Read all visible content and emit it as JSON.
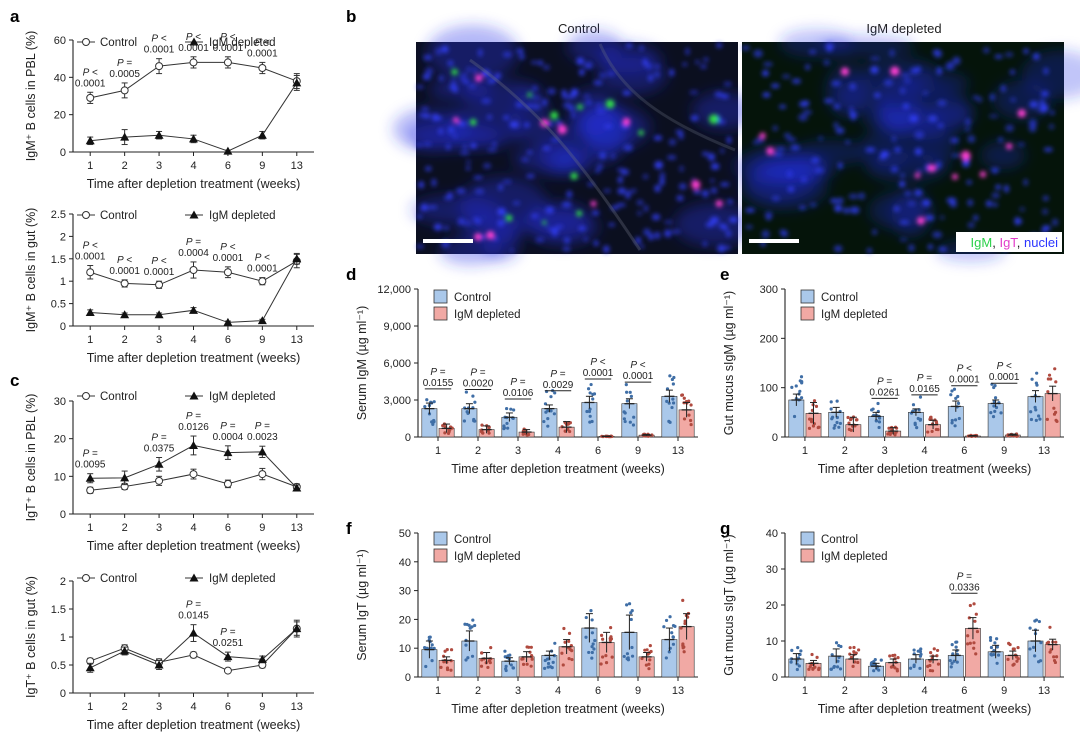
{
  "figure": {
    "panel_labels": [
      "a",
      "b",
      "c",
      "d",
      "e",
      "f",
      "g"
    ],
    "micrograph": {
      "columns": [
        "Control",
        "IgM depleted"
      ],
      "stain_legend": [
        {
          "text": "IgM",
          "color": "#2bd14a"
        },
        {
          "text": ", ",
          "color": "#222222"
        },
        {
          "text": "IgT",
          "color": "#e23cc9"
        },
        {
          "text": ", ",
          "color": "#222222"
        },
        {
          "text": "nuclei",
          "color": "#2b34ff"
        }
      ]
    }
  },
  "chart_data": [
    {
      "id": "a1",
      "type": "line",
      "ylabel": "IgM⁺ B cells in PBL (%)",
      "xlabel": "Time after depletion treatment (weeks)",
      "categories": [
        "1",
        "2",
        "3",
        "4",
        "6",
        "9",
        "13"
      ],
      "ylim": [
        0,
        60
      ],
      "yticks": [
        0,
        20,
        40,
        60
      ],
      "legend": [
        "Control",
        "IgM depleted"
      ],
      "series": [
        {
          "name": "Control",
          "marker": "open-circle",
          "values": [
            29,
            33,
            46,
            48,
            48,
            45,
            38
          ],
          "err": [
            3,
            4,
            4,
            3,
            3,
            3,
            4
          ]
        },
        {
          "name": "IgM depleted",
          "marker": "filled-triangle",
          "values": [
            6,
            8,
            9,
            7,
            0.5,
            9,
            37
          ],
          "err": [
            2,
            4,
            2,
            2,
            0.5,
            2,
            4
          ]
        }
      ],
      "pvalues": [
        {
          "cat": 0,
          "lines": [
            "P <",
            "0.0001"
          ]
        },
        {
          "cat": 1,
          "lines": [
            "P =",
            "0.0005"
          ]
        },
        {
          "cat": 2,
          "lines": [
            "P <",
            "0.0001"
          ]
        },
        {
          "cat": 3,
          "lines": [
            "P <",
            "0.0001"
          ]
        },
        {
          "cat": 4,
          "lines": [
            "P <",
            "0.0001"
          ]
        },
        {
          "cat": 5,
          "lines": [
            "P <",
            "0.0001"
          ]
        }
      ]
    },
    {
      "id": "a2",
      "type": "line",
      "ylabel": "IgM⁺ B cells in gut (%)",
      "xlabel": "Time after depletion treatment (weeks)",
      "categories": [
        "1",
        "2",
        "3",
        "4",
        "6",
        "9",
        "13"
      ],
      "ylim": [
        0,
        2.5
      ],
      "yticks": [
        0,
        0.5,
        1.0,
        1.5,
        2.0,
        2.5
      ],
      "legend": [
        "Control",
        "IgM depleted"
      ],
      "series": [
        {
          "name": "Control",
          "marker": "open-circle",
          "values": [
            1.2,
            0.95,
            0.92,
            1.25,
            1.2,
            1.0,
            1.45
          ],
          "err": [
            0.15,
            0.08,
            0.08,
            0.18,
            0.12,
            0.08,
            0.15
          ]
        },
        {
          "name": "IgM depleted",
          "marker": "filled-triangle",
          "values": [
            0.3,
            0.25,
            0.25,
            0.35,
            0.08,
            0.12,
            1.5
          ],
          "err": [
            0.06,
            0.04,
            0.04,
            0.06,
            0.03,
            0.03,
            0.12
          ]
        }
      ],
      "pvalues": [
        {
          "cat": 0,
          "lines": [
            "P <",
            "0.0001"
          ]
        },
        {
          "cat": 1,
          "lines": [
            "P <",
            "0.0001"
          ]
        },
        {
          "cat": 2,
          "lines": [
            "P <",
            "0.0001"
          ]
        },
        {
          "cat": 3,
          "lines": [
            "P =",
            "0.0004"
          ]
        },
        {
          "cat": 4,
          "lines": [
            "P <",
            "0.0001"
          ]
        },
        {
          "cat": 5,
          "lines": [
            "P <",
            "0.0001"
          ]
        }
      ]
    },
    {
      "id": "c1",
      "type": "line",
      "ylabel": "IgT⁺ B cells in PBL (%)",
      "xlabel": "Time after depletion treatment (weeks)",
      "categories": [
        "1",
        "2",
        "3",
        "4",
        "6",
        "9",
        "13"
      ],
      "ylim": [
        0,
        30
      ],
      "yticks": [
        0,
        10,
        20,
        30
      ],
      "legend": [
        "Control",
        "IgM depleted"
      ],
      "series": [
        {
          "name": "Control",
          "marker": "open-circle",
          "values": [
            6.3,
            7.3,
            8.8,
            10.6,
            8,
            10.6,
            7.2
          ],
          "err": [
            0.8,
            0.8,
            1.2,
            1.3,
            1,
            1.5,
            0.8
          ]
        },
        {
          "name": "IgM depleted",
          "marker": "filled-triangle",
          "values": [
            9.5,
            9.6,
            13.2,
            18.2,
            16.3,
            16.5,
            6.9
          ],
          "err": [
            1.2,
            1.8,
            1.8,
            2.5,
            1.8,
            1.5,
            0.8
          ]
        }
      ],
      "pvalues": [
        {
          "cat": 0,
          "lines": [
            "P =",
            "0.0095"
          ]
        },
        {
          "cat": 2,
          "lines": [
            "P =",
            "0.0375"
          ]
        },
        {
          "cat": 3,
          "lines": [
            "P =",
            "0.0126"
          ]
        },
        {
          "cat": 4,
          "lines": [
            "P =",
            "0.0004"
          ]
        },
        {
          "cat": 5,
          "lines": [
            "P =",
            "0.0023"
          ]
        }
      ]
    },
    {
      "id": "c2",
      "type": "line",
      "ylabel": "IgT⁺ B cells in gut (%)",
      "xlabel": "Time after depletion treatment (weeks)",
      "categories": [
        "1",
        "2",
        "3",
        "4",
        "6",
        "9",
        "13"
      ],
      "ylim": [
        0,
        2.0
      ],
      "yticks": [
        0,
        0.5,
        1.0,
        1.5,
        2.0
      ],
      "legend": [
        "Control",
        "IgM depleted"
      ],
      "series": [
        {
          "name": "Control",
          "marker": "open-circle",
          "values": [
            0.57,
            0.8,
            0.55,
            0.68,
            0.4,
            0.5,
            1.15
          ],
          "err": [
            0.05,
            0.06,
            0.06,
            0.05,
            0.03,
            0.05,
            0.12
          ]
        },
        {
          "name": "IgM depleted",
          "marker": "filled-triangle",
          "values": [
            0.45,
            0.75,
            0.5,
            1.07,
            0.65,
            0.6,
            1.15
          ],
          "err": [
            0.08,
            0.07,
            0.08,
            0.15,
            0.08,
            0.06,
            0.15
          ]
        }
      ],
      "pvalues": [
        {
          "cat": 3,
          "lines": [
            "P =",
            "0.0145"
          ]
        },
        {
          "cat": 4,
          "lines": [
            "P =",
            "0.0251"
          ]
        }
      ]
    },
    {
      "id": "d",
      "type": "bar",
      "ylabel": "Serum IgM (µg ml⁻¹)",
      "xlabel": "Time after depletion treatment (weeks)",
      "categories": [
        "1",
        "2",
        "3",
        "4",
        "6",
        "9",
        "13"
      ],
      "ylim": [
        0,
        12000
      ],
      "yticks": [
        0,
        3000,
        6000,
        9000,
        12000
      ],
      "ytick_labels": [
        "0",
        "3,000",
        "6,000",
        "9,000",
        "12,000"
      ],
      "legend": [
        "Control",
        "IgM depleted"
      ],
      "series": [
        {
          "name": "Control",
          "color": "#aac8ea",
          "dot": "#3f6ea6",
          "values": [
            2300,
            2300,
            1600,
            2300,
            2800,
            2700,
            3300
          ],
          "err": [
            450,
            400,
            350,
            300,
            500,
            400,
            500
          ]
        },
        {
          "name": "IgM depleted",
          "color": "#f1a9a4",
          "dot": "#b04a3f",
          "values": [
            700,
            600,
            400,
            800,
            50,
            150,
            2200
          ],
          "err": [
            350,
            300,
            200,
            450,
            20,
            60,
            600
          ]
        }
      ],
      "pvalues": [
        {
          "cat": 0,
          "lines": [
            "P =",
            "0.0155"
          ]
        },
        {
          "cat": 1,
          "lines": [
            "P =",
            "0.0020"
          ]
        },
        {
          "cat": 2,
          "lines": [
            "P =",
            "0.0106"
          ]
        },
        {
          "cat": 3,
          "lines": [
            "P =",
            "0.0029"
          ]
        },
        {
          "cat": 4,
          "lines": [
            "P <",
            "0.0001"
          ]
        },
        {
          "cat": 5,
          "lines": [
            "P <",
            "0.0001"
          ]
        }
      ]
    },
    {
      "id": "e",
      "type": "bar",
      "ylabel": "Gut mucus sIgM (µg ml⁻¹)",
      "xlabel": "Time after depletion treatment (weeks)",
      "categories": [
        "1",
        "2",
        "3",
        "4",
        "6",
        "9",
        "13"
      ],
      "ylim": [
        0,
        300
      ],
      "yticks": [
        0,
        100,
        200,
        300
      ],
      "legend": [
        "Control",
        "IgM depleted"
      ],
      "series": [
        {
          "name": "Control",
          "color": "#aac8ea",
          "dot": "#3f6ea6",
          "values": [
            75,
            50,
            42,
            50,
            62,
            68,
            82
          ],
          "err": [
            12,
            10,
            8,
            7,
            11,
            7,
            12
          ]
        },
        {
          "name": "IgM depleted",
          "color": "#f1a9a4",
          "dot": "#b04a3f",
          "values": [
            48,
            25,
            12,
            25,
            2,
            4,
            88
          ],
          "err": [
            22,
            15,
            7,
            9,
            1,
            2,
            15
          ]
        }
      ],
      "pvalues": [
        {
          "cat": 2,
          "lines": [
            "P =",
            "0.0261"
          ]
        },
        {
          "cat": 3,
          "lines": [
            "P =",
            "0.0165"
          ]
        },
        {
          "cat": 4,
          "lines": [
            "P <",
            "0.0001"
          ]
        },
        {
          "cat": 5,
          "lines": [
            "P <",
            "0.0001"
          ]
        }
      ]
    },
    {
      "id": "f",
      "type": "bar",
      "ylabel": "Serum IgT (µg ml⁻¹)",
      "xlabel": "Time after depletion treatment (weeks)",
      "categories": [
        "1",
        "2",
        "3",
        "4",
        "6",
        "9",
        "13"
      ],
      "ylim": [
        0,
        50
      ],
      "yticks": [
        0,
        10,
        20,
        30,
        40,
        50
      ],
      "legend": [
        "Control",
        "IgM depleted"
      ],
      "series": [
        {
          "name": "Control",
          "color": "#aac8ea",
          "dot": "#3f6ea6",
          "values": [
            9.5,
            12.5,
            5.5,
            7.5,
            17,
            15.5,
            13
          ],
          "err": [
            3,
            3.5,
            1.2,
            1.5,
            5,
            6,
            4
          ]
        },
        {
          "name": "IgM depleted",
          "color": "#f1a9a4",
          "dot": "#b04a3f",
          "values": [
            5.8,
            6.5,
            7,
            10.5,
            12,
            7,
            17.5
          ],
          "err": [
            1.2,
            2,
            1.8,
            2.5,
            3.5,
            1.5,
            4.5
          ]
        }
      ],
      "pvalues": []
    },
    {
      "id": "g",
      "type": "bar",
      "ylabel": "Gut mucus sIgT (µg ml⁻¹)",
      "xlabel": "Time after depletion treatment (weeks)",
      "categories": [
        "1",
        "2",
        "3",
        "4",
        "6",
        "9",
        "13"
      ],
      "ylim": [
        0,
        40
      ],
      "yticks": [
        0,
        10,
        20,
        30,
        40
      ],
      "legend": [
        "Control",
        "IgM depleted"
      ],
      "series": [
        {
          "name": "Control",
          "color": "#aac8ea",
          "dot": "#3f6ea6",
          "values": [
            5,
            5.8,
            3,
            5,
            6,
            7,
            10
          ],
          "err": [
            1.5,
            2,
            0.8,
            1.2,
            1.5,
            1.8,
            3
          ]
        },
        {
          "name": "IgM depleted",
          "color": "#f1a9a4",
          "dot": "#b04a3f",
          "values": [
            3.8,
            5,
            4,
            4.8,
            13.5,
            6,
            9
          ],
          "err": [
            0.8,
            1.2,
            1,
            1,
            3,
            1.2,
            1.5
          ]
        }
      ],
      "pvalues": [
        {
          "cat": 4,
          "lines": [
            "P =",
            "0.0336"
          ]
        }
      ]
    }
  ]
}
